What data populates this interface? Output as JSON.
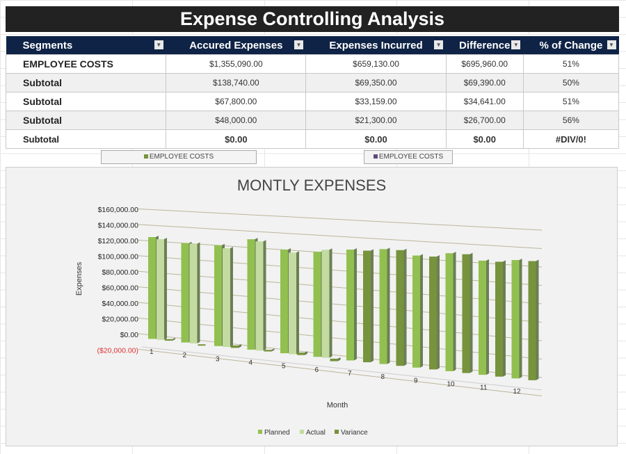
{
  "title": "Expense Controlling Analysis",
  "table": {
    "headers": [
      "Segments",
      "Accured Expenses",
      "Expenses Incurred",
      "Difference",
      "% of Change"
    ],
    "rows": [
      [
        "EMPLOYEE COSTS",
        "$1,355,090.00",
        "$659,130.00",
        "$695,960.00",
        "51%"
      ],
      [
        "Subtotal",
        "$138,740.00",
        "$69,350.00",
        "$69,390.00",
        "50%"
      ],
      [
        "Subtotal",
        "$67,800.00",
        "$33,159.00",
        "$34,641.00",
        "51%"
      ],
      [
        "Subtotal",
        "$48,000.00",
        "$21,300.00",
        "$26,700.00",
        "56%"
      ],
      [
        "Subtotal",
        "$0.00",
        "$0.00",
        "$0.00",
        "#DIV/0!"
      ]
    ]
  },
  "slicers": [
    {
      "label": "EMPLOYEE COSTS",
      "color": "#77933c"
    },
    {
      "label": "EMPLOYEE COSTS",
      "color": "#5f497a"
    }
  ],
  "chart_data": {
    "type": "bar",
    "title": "MONTLY EXPENSES",
    "xlabel": "Month",
    "ylabel": "Expenses",
    "categories": [
      "1",
      "2",
      "3",
      "4",
      "5",
      "6",
      "7",
      "8",
      "9",
      "10",
      "11",
      "12"
    ],
    "yticks": [
      "($20,000.00)",
      "$0.00",
      "$20,000.00",
      "$40,000.00",
      "$60,000.00",
      "$80,000.00",
      "$100,000.00",
      "$120,000.00",
      "$140,000.00",
      "$160,000.00"
    ],
    "ylim": [
      -20000,
      160000
    ],
    "series": [
      {
        "name": "Planned",
        "color": "#92c050",
        "values": [
          130000,
          125000,
          125000,
          135000,
          125000,
          125000,
          130000,
          133000,
          128000,
          133000,
          127000,
          130000
        ]
      },
      {
        "name": "Actual",
        "color": "#c3dba0",
        "values": [
          128000,
          125000,
          122000,
          133000,
          122000,
          128000,
          0,
          0,
          0,
          0,
          0,
          0
        ]
      },
      {
        "name": "Variance",
        "color": "#77933c",
        "values": [
          2000,
          0,
          3000,
          2000,
          3000,
          -3000,
          130000,
          133000,
          128000,
          133000,
          127000,
          130000
        ]
      }
    ],
    "legend": "bottom"
  }
}
